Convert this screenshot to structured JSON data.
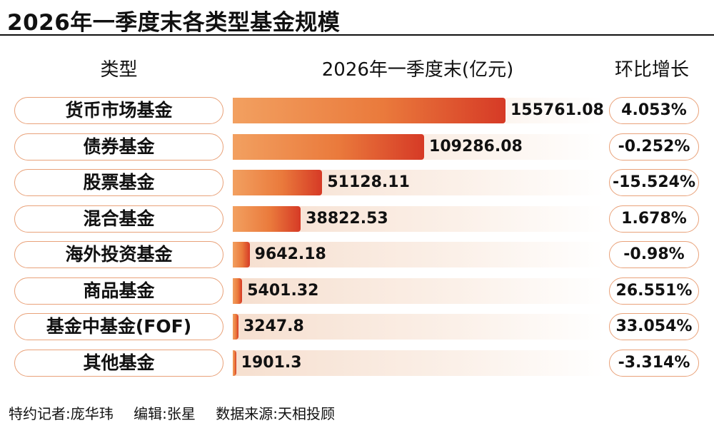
{
  "title": "2026年一季度末各类型基金规模",
  "headers": {
    "type": "类型",
    "scale": "2026年一季度末(亿元)",
    "growth": "环比增长"
  },
  "chart_data": {
    "type": "bar",
    "orientation": "horizontal",
    "title": "2026年一季度末各类型基金规模",
    "categories": [
      "货币市场基金",
      "债券基金",
      "股票基金",
      "混合基金",
      "海外投资基金",
      "商品基金",
      "基金中基金(FOF)",
      "其他基金"
    ],
    "values": [
      155761.08,
      109286.08,
      51128.11,
      38822.53,
      9642.18,
      5401.32,
      3247.8,
      1901.3
    ],
    "value_labels": [
      "155761.08",
      "109286.08",
      "51128.11",
      "38822.53",
      "9642.18",
      "5401.32",
      "3247.8",
      "1901.3"
    ],
    "growth": [
      "4.053%",
      "-0.252%",
      "-15.524%",
      "1.678%",
      "-0.98%",
      "26.551%",
      "33.054%",
      "-3.314%"
    ],
    "unit": "亿元",
    "xlim": [
      0,
      200000
    ]
  },
  "footer": {
    "reporter": "特约记者:庞华玮",
    "editor": "编辑:张星",
    "source": "数据来源:天相投顾"
  },
  "colors": {
    "bar_start": "#f2a060",
    "bar_end": "#d63a26",
    "pill_border": "#e9a27a",
    "stripe": "#f6dfcf"
  }
}
